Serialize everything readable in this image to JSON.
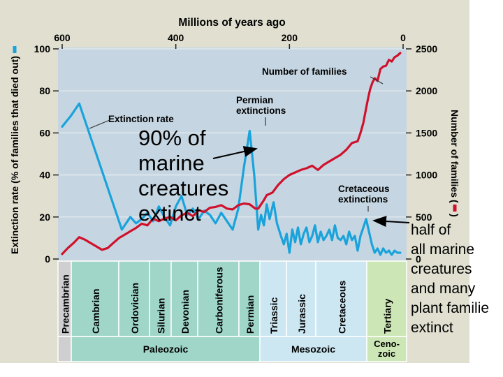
{
  "chart_data": {
    "type": "line",
    "title": "Millions of years ago",
    "x_axis": {
      "label": "Millions of years ago",
      "range": [
        600,
        0
      ],
      "ticks": [
        "600",
        "400",
        "200",
        "0"
      ]
    },
    "y_left": {
      "label": "Extinction rate (% of families that died out)",
      "range": [
        0,
        100
      ],
      "ticks": [
        "0",
        "20",
        "40",
        "60",
        "80",
        "100"
      ]
    },
    "y_right": {
      "label": "Number of families",
      "range": [
        0,
        2500
      ],
      "ticks": [
        "0",
        "500",
        "1000",
        "1500",
        "2000",
        "2500"
      ]
    },
    "series": [
      {
        "name": "Extinction rate",
        "axis": "left",
        "color": "#1aa3db",
        "x": [
          600,
          585,
          570,
          555,
          540,
          525,
          510,
          495,
          480,
          470,
          460,
          450,
          440,
          430,
          420,
          410,
          400,
          390,
          380,
          370,
          360,
          350,
          340,
          330,
          320,
          310,
          300,
          290,
          280,
          270,
          262,
          255,
          250,
          245,
          240,
          235,
          228,
          222,
          215,
          210,
          205,
          200,
          195,
          190,
          185,
          180,
          175,
          170,
          165,
          160,
          155,
          150,
          145,
          140,
          135,
          130,
          125,
          120,
          115,
          110,
          105,
          100,
          95,
          90,
          85,
          80,
          75,
          70,
          65,
          60,
          55,
          50,
          45,
          40,
          35,
          30,
          25,
          20,
          15,
          10,
          5
        ],
        "values": [
          63,
          68,
          74,
          62,
          50,
          38,
          26,
          14,
          20,
          17,
          19,
          22,
          18,
          25,
          20,
          16,
          25,
          30,
          21,
          24,
          19,
          23,
          21,
          17,
          22,
          18,
          14,
          24,
          44,
          61,
          40,
          14,
          21,
          16,
          26,
          19,
          27,
          17,
          11,
          7,
          12,
          3,
          14,
          8,
          15,
          7,
          12,
          15,
          8,
          11,
          16,
          8,
          13,
          9,
          11,
          14,
          9,
          16,
          10,
          9,
          11,
          7,
          13,
          9,
          11,
          4,
          11,
          15,
          19,
          13,
          7,
          3,
          5,
          2,
          5,
          3,
          4,
          2,
          4,
          3,
          3
        ]
      },
      {
        "name": "Number of families",
        "axis": "right",
        "color": "#d0112b",
        "x": [
          600,
          590,
          580,
          570,
          560,
          550,
          540,
          530,
          520,
          510,
          500,
          490,
          480,
          470,
          460,
          450,
          440,
          430,
          420,
          410,
          400,
          390,
          380,
          370,
          360,
          350,
          340,
          330,
          320,
          310,
          300,
          290,
          280,
          270,
          260,
          255,
          250,
          245,
          240,
          230,
          220,
          210,
          200,
          190,
          180,
          170,
          160,
          150,
          140,
          130,
          120,
          110,
          100,
          90,
          80,
          75,
          70,
          66,
          62,
          58,
          54,
          50,
          45,
          40,
          35,
          30,
          25,
          20,
          15,
          10,
          5
        ],
        "values": [
          60,
          130,
          190,
          260,
          230,
          190,
          150,
          110,
          130,
          190,
          250,
          290,
          330,
          370,
          420,
          400,
          480,
          450,
          480,
          500,
          460,
          520,
          550,
          510,
          580,
          560,
          610,
          620,
          640,
          600,
          590,
          640,
          660,
          650,
          600,
          600,
          650,
          700,
          760,
          790,
          880,
          950,
          1000,
          1030,
          1060,
          1080,
          1110,
          1060,
          1120,
          1160,
          1200,
          1240,
          1300,
          1380,
          1400,
          1500,
          1620,
          1760,
          1900,
          2020,
          2100,
          2150,
          2120,
          2260,
          2290,
          2300,
          2370,
          2350,
          2400,
          2420,
          2450
        ]
      }
    ],
    "annotations": [
      {
        "text": "Number of families",
        "points_to": "Number of families"
      },
      {
        "text": "Extinction rate",
        "points_to": "Extinction rate"
      },
      {
        "text": "Permian extinctions",
        "x": 250
      },
      {
        "text": "Cretaceous extinctions",
        "x": 65
      }
    ],
    "periods": [
      {
        "name": "Precambrian",
        "color": "#cfcfcf"
      },
      {
        "name": "Cambrian",
        "color": "#9fd6c8"
      },
      {
        "name": "Ordovician",
        "color": "#9fd6c8"
      },
      {
        "name": "Silurian",
        "color": "#9fd6c8"
      },
      {
        "name": "Devonian",
        "color": "#9fd6c8"
      },
      {
        "name": "Carboniferous",
        "color": "#9fd6c8"
      },
      {
        "name": "Permian",
        "color": "#9fd6c8"
      },
      {
        "name": "Triassic",
        "color": "#cce6f2"
      },
      {
        "name": "Jurassic",
        "color": "#cce6f2"
      },
      {
        "name": "Cretaceous",
        "color": "#cce6f2"
      },
      {
        "name": "Tertiary",
        "color": "#cde6b6"
      }
    ],
    "eras": [
      {
        "name": "Paleozoic",
        "color": "#9fd6c8"
      },
      {
        "name": "Mesozoic",
        "color": "#cce6f2"
      },
      {
        "name": "Ceno-",
        "name2": "zoic",
        "color": "#cde6b6"
      }
    ],
    "colors": {
      "background": "#e0dfd0",
      "plot": "#c5d6e2",
      "grid": "#e8ecef"
    }
  },
  "notes": {
    "left": [
      "90% of",
      "marine",
      "creatures",
      "extinct"
    ],
    "right": [
      "half of",
      "all marine",
      "creatures",
      "and many",
      "plant familie",
      "extinct"
    ]
  }
}
